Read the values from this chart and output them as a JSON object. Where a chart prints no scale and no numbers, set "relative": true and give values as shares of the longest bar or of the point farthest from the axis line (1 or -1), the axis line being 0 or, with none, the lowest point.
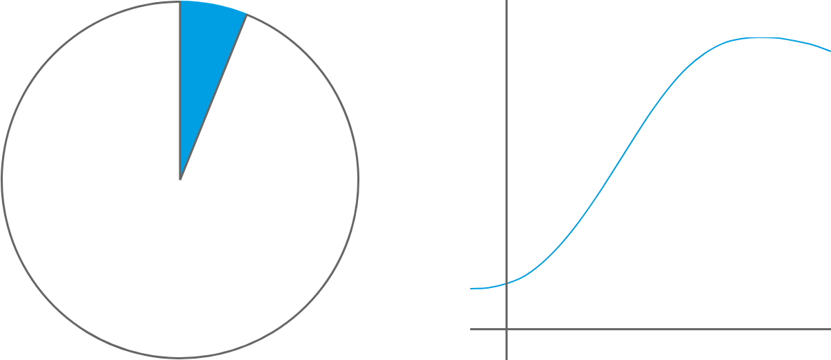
{
  "chart_data": [
    {
      "type": "pie",
      "categories": [
        null,
        null
      ],
      "values": [
        6.1,
        93.9
      ],
      "colors": [
        "#009fe3",
        "#ffffff"
      ]
    },
    {
      "type": "line",
      "relative": true,
      "categories": [
        null,
        null,
        null,
        null,
        null,
        null,
        null,
        null,
        null,
        null,
        null,
        null,
        null,
        null,
        null,
        null,
        null,
        null,
        null,
        null,
        null
      ],
      "series": [
        {
          "color": "#009fe3",
          "values": [
            0.138,
            0.141,
            0.155,
            0.181,
            0.227,
            0.289,
            0.365,
            0.453,
            0.549,
            0.647,
            0.742,
            0.826,
            0.895,
            0.945,
            0.979,
            0.995,
            1,
            0.998,
            0.988,
            0.974,
            0.952
          ]
        }
      ]
    }
  ]
}
